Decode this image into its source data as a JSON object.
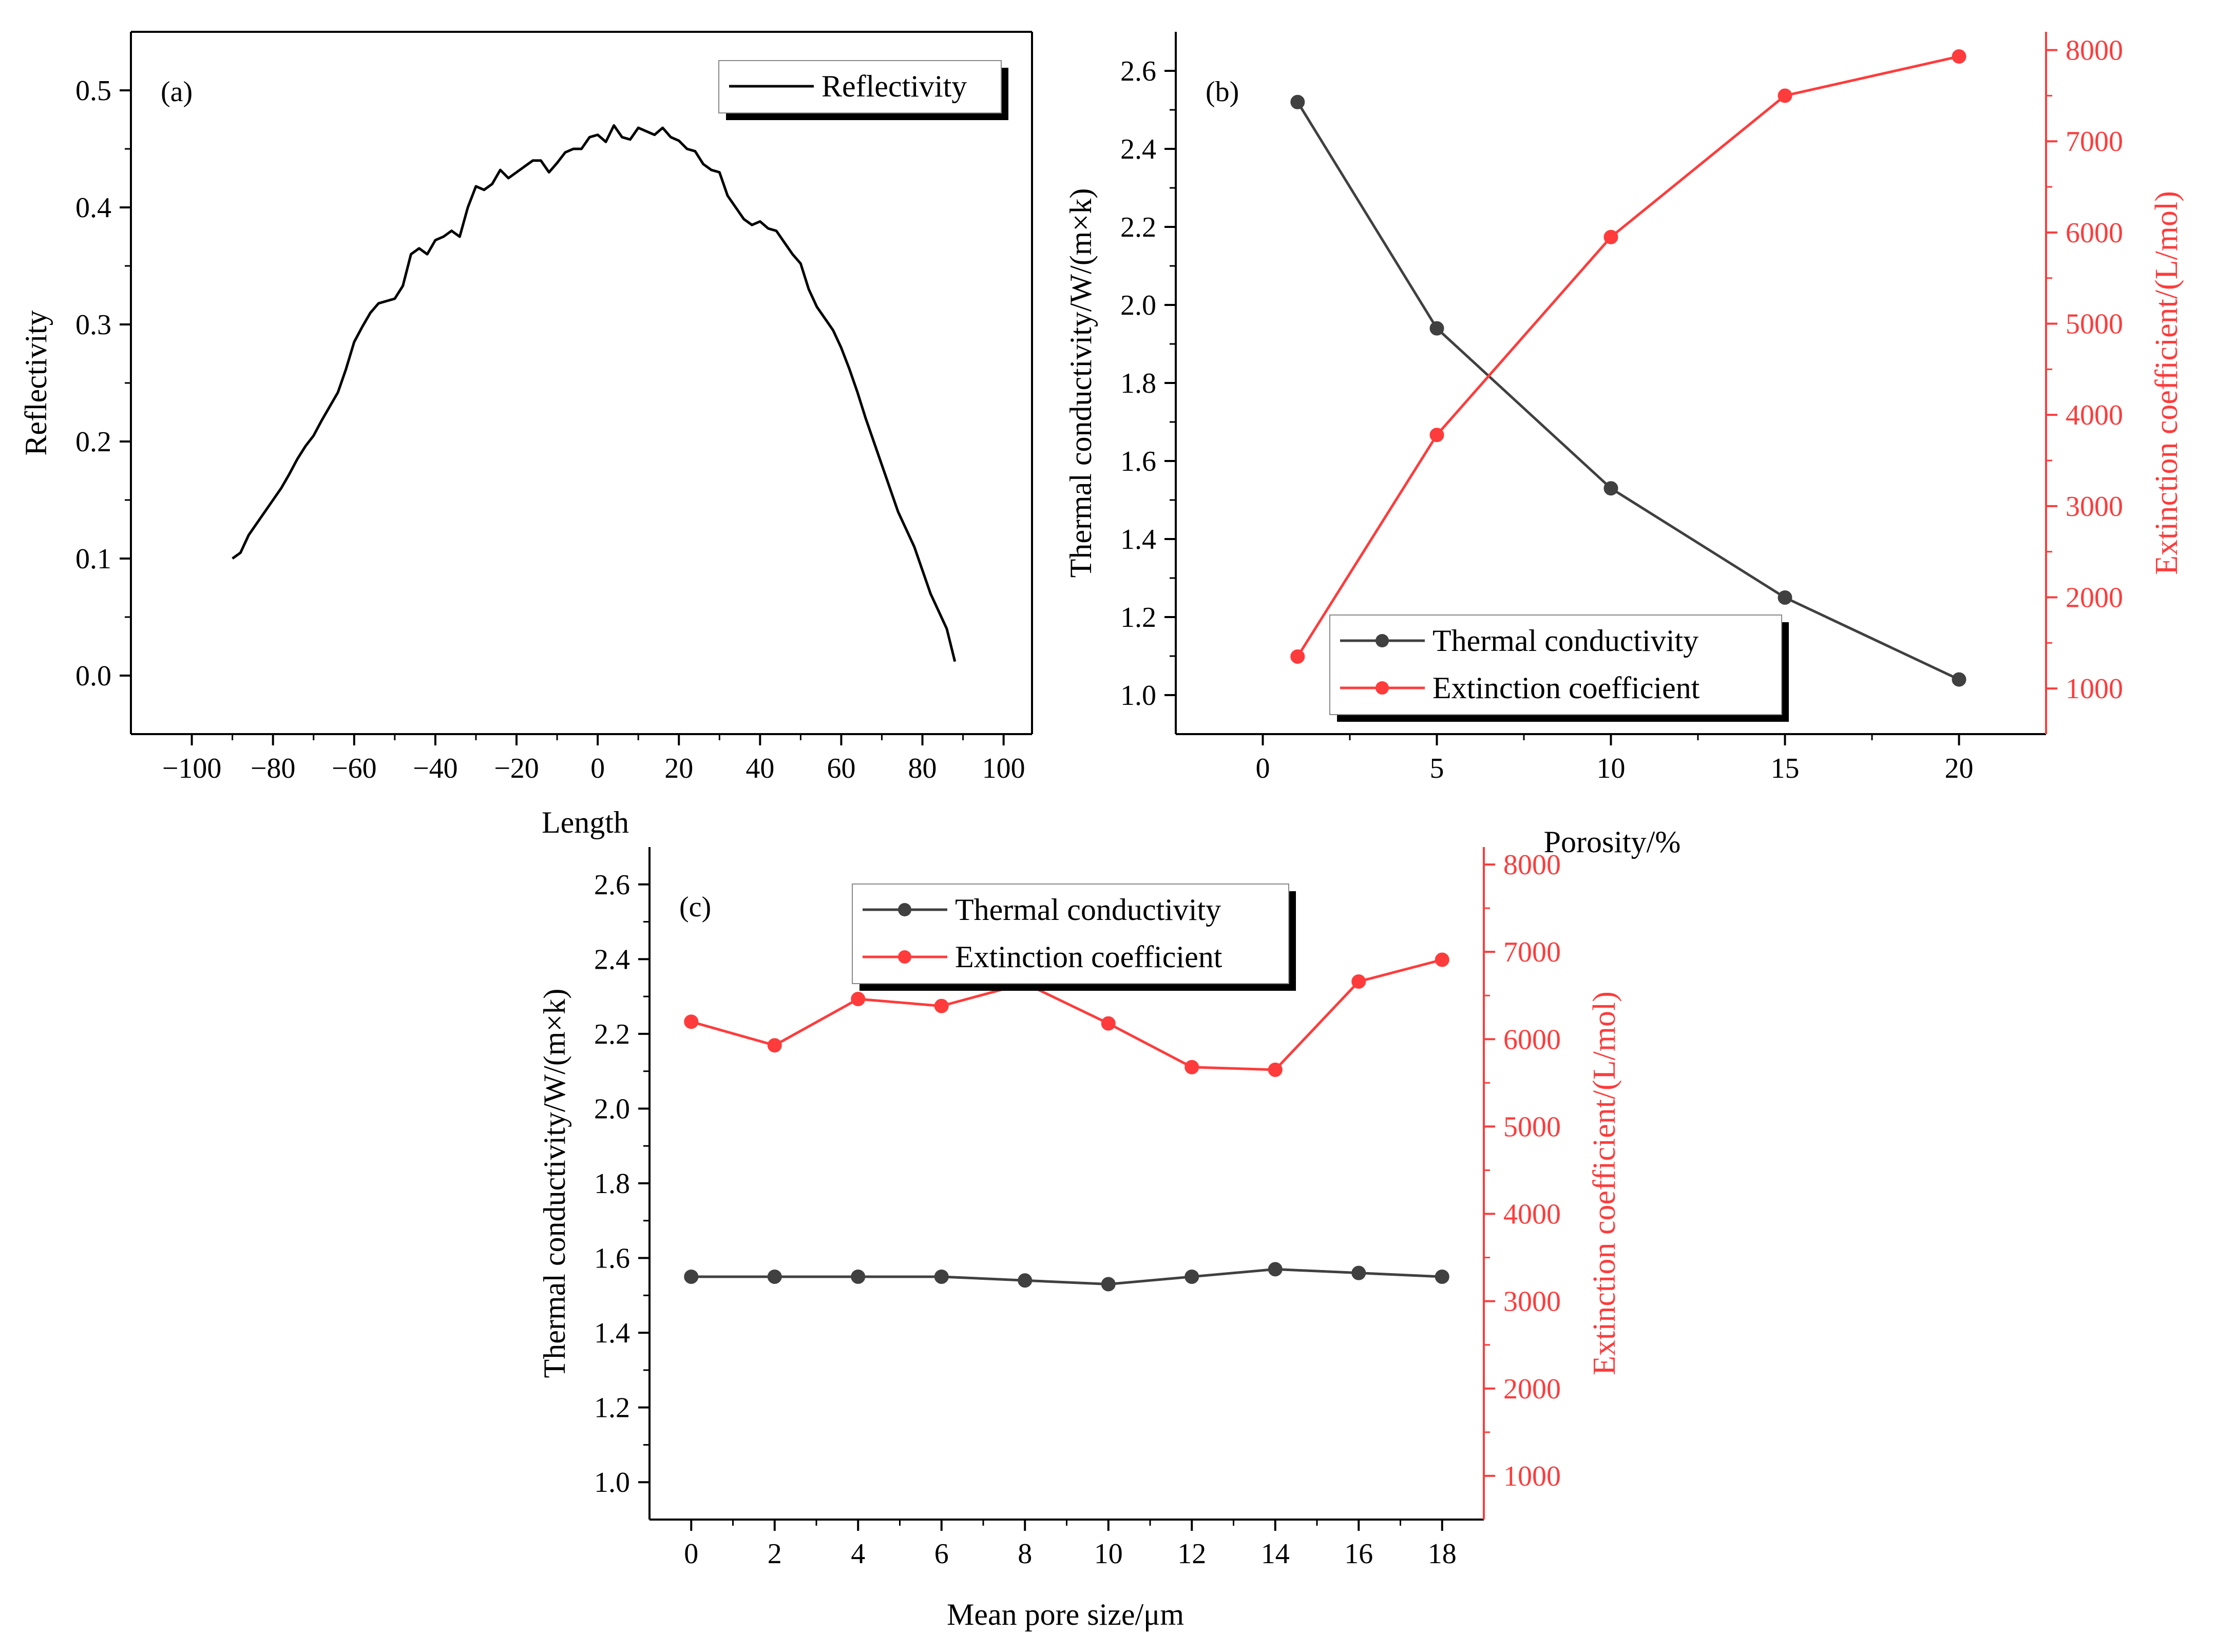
{
  "colors": {
    "black": "#000000",
    "dark": "#404040",
    "red": "#ff3b3b",
    "frame": "#000000"
  },
  "chart_data": [
    {
      "id": "a",
      "type": "line",
      "panel_label": "(a)",
      "xlabel": "Length",
      "ylabel": "Reflectivity",
      "xlim": [
        -115,
        107
      ],
      "ylim": [
        -0.05,
        0.55
      ],
      "xticks": [
        -100,
        -80,
        -60,
        -40,
        -20,
        0,
        20,
        40,
        60,
        80,
        100
      ],
      "xtick_labels": [
        "−100",
        "−80",
        "−60",
        "−40",
        "−20",
        "0",
        "20",
        "40",
        "60",
        "80",
        "100"
      ],
      "yticks": [
        0.0,
        0.1,
        0.2,
        0.3,
        0.4,
        0.5
      ],
      "ytick_labels": [
        "0.0",
        "0.1",
        "0.2",
        "0.3",
        "0.4",
        "0.5"
      ],
      "legend": "top-right",
      "series": [
        {
          "name": "Reflectivity",
          "color": "#000000",
          "x": [
            -90,
            -88,
            -86,
            -84,
            -82,
            -80,
            -78,
            -76,
            -74,
            -72,
            -70,
            -68,
            -66,
            -64,
            -62,
            -60,
            -58,
            -56,
            -54,
            -52,
            -50,
            -48,
            -46,
            -44,
            -42,
            -40,
            -38,
            -36,
            -34,
            -32,
            -30,
            -28,
            -26,
            -24,
            -22,
            -20,
            -18,
            -16,
            -14,
            -12,
            -10,
            -8,
            -6,
            -4,
            -2,
            0,
            2,
            4,
            6,
            8,
            10,
            12,
            14,
            16,
            18,
            20,
            22,
            24,
            26,
            28,
            30,
            32,
            34,
            36,
            38,
            40,
            42,
            44,
            46,
            48,
            50,
            52,
            54,
            56,
            58,
            60,
            62,
            64,
            66,
            68,
            70,
            72,
            74,
            76,
            78,
            80,
            82,
            84,
            86,
            88
          ],
          "y": [
            0.1,
            0.105,
            0.12,
            0.13,
            0.14,
            0.15,
            0.16,
            0.172,
            0.185,
            0.196,
            0.205,
            0.218,
            0.23,
            0.242,
            0.262,
            0.285,
            0.298,
            0.31,
            0.318,
            0.32,
            0.322,
            0.333,
            0.36,
            0.365,
            0.36,
            0.372,
            0.375,
            0.38,
            0.375,
            0.4,
            0.418,
            0.415,
            0.42,
            0.432,
            0.425,
            0.43,
            0.435,
            0.44,
            0.44,
            0.43,
            0.438,
            0.447,
            0.45,
            0.45,
            0.46,
            0.462,
            0.456,
            0.47,
            0.46,
            0.458,
            0.468,
            0.465,
            0.462,
            0.468,
            0.46,
            0.457,
            0.45,
            0.448,
            0.437,
            0.432,
            0.43,
            0.41,
            0.4,
            0.39,
            0.385,
            0.388,
            0.382,
            0.38,
            0.37,
            0.36,
            0.352,
            0.33,
            0.315,
            0.305,
            0.295,
            0.28,
            0.262,
            0.242,
            0.22,
            0.2,
            0.18,
            0.16,
            0.14,
            0.125,
            0.11,
            0.09,
            0.07,
            0.055,
            0.04,
            0.012
          ]
        }
      ]
    },
    {
      "id": "b",
      "type": "line",
      "panel_label": "(b)",
      "xlabel": "Porosity/%",
      "ylabel": "Thermal conductivity/W/(m×k)",
      "y2label": "Extinction coefficient/(L/mol)",
      "xlim": [
        -2.5,
        22.5
      ],
      "ylim": [
        0.9,
        2.7
      ],
      "y2lim": [
        500,
        8200
      ],
      "xticks": [
        0,
        5,
        10,
        15,
        20
      ],
      "xtick_labels": [
        "0",
        "5",
        "10",
        "15",
        "20"
      ],
      "yticks": [
        1.0,
        1.2,
        1.4,
        1.6,
        1.8,
        2.0,
        2.2,
        2.4,
        2.6
      ],
      "ytick_labels": [
        "1.0",
        "1.2",
        "1.4",
        "1.6",
        "1.8",
        "2.0",
        "2.2",
        "2.4",
        "2.6"
      ],
      "y2ticks": [
        1000,
        2000,
        3000,
        4000,
        5000,
        6000,
        7000,
        8000
      ],
      "y2tick_labels": [
        "1000",
        "2000",
        "3000",
        "4000",
        "5000",
        "6000",
        "7000",
        "8000"
      ],
      "legend": "bottom-center",
      "series": [
        {
          "name": "Thermal conductivity",
          "axis": "left",
          "color": "#404040",
          "x": [
            1,
            5,
            10,
            15,
            20
          ],
          "y": [
            2.52,
            1.94,
            1.53,
            1.25,
            1.04
          ]
        },
        {
          "name": "Extinction coefficient",
          "axis": "right",
          "color": "#ff3b3b",
          "x": [
            1,
            5,
            10,
            15,
            20
          ],
          "y": [
            1350,
            3780,
            5950,
            7500,
            7930
          ]
        }
      ]
    },
    {
      "id": "c",
      "type": "line",
      "panel_label": "(c)",
      "xlabel": "Mean pore size/μm",
      "ylabel": "Thermal conductivity/W/(m×k)",
      "y2label": "Extinction coefficient/(L/mol)",
      "xlim": [
        -1,
        19
      ],
      "ylim": [
        0.9,
        2.7
      ],
      "y2lim": [
        500,
        8200
      ],
      "xticks": [
        0,
        2,
        4,
        6,
        8,
        10,
        12,
        14,
        16,
        18
      ],
      "xtick_labels": [
        "0",
        "2",
        "4",
        "6",
        "8",
        "10",
        "12",
        "14",
        "16",
        "18"
      ],
      "yticks": [
        1.0,
        1.2,
        1.4,
        1.6,
        1.8,
        2.0,
        2.2,
        2.4,
        2.6
      ],
      "ytick_labels": [
        "1.0",
        "1.2",
        "1.4",
        "1.6",
        "1.8",
        "2.0",
        "2.2",
        "2.4",
        "2.6"
      ],
      "y2ticks": [
        1000,
        2000,
        3000,
        4000,
        5000,
        6000,
        7000,
        8000
      ],
      "y2tick_labels": [
        "1000",
        "2000",
        "3000",
        "4000",
        "5000",
        "6000",
        "7000",
        "8000"
      ],
      "legend": "top-left",
      "series": [
        {
          "name": "Thermal conductivity",
          "axis": "left",
          "color": "#404040",
          "x": [
            0,
            2,
            4,
            6,
            8,
            10,
            12,
            14,
            16,
            18
          ],
          "y": [
            1.55,
            1.55,
            1.55,
            1.55,
            1.54,
            1.53,
            1.55,
            1.57,
            1.56,
            1.55
          ]
        },
        {
          "name": "Extinction coefficient",
          "axis": "right",
          "color": "#ff3b3b",
          "x": [
            0,
            2,
            4,
            6,
            8,
            10,
            12,
            14,
            16,
            18
          ],
          "y": [
            6200,
            5930,
            6460,
            6380,
            6640,
            6180,
            5680,
            5650,
            6660,
            6910
          ]
        }
      ]
    }
  ]
}
